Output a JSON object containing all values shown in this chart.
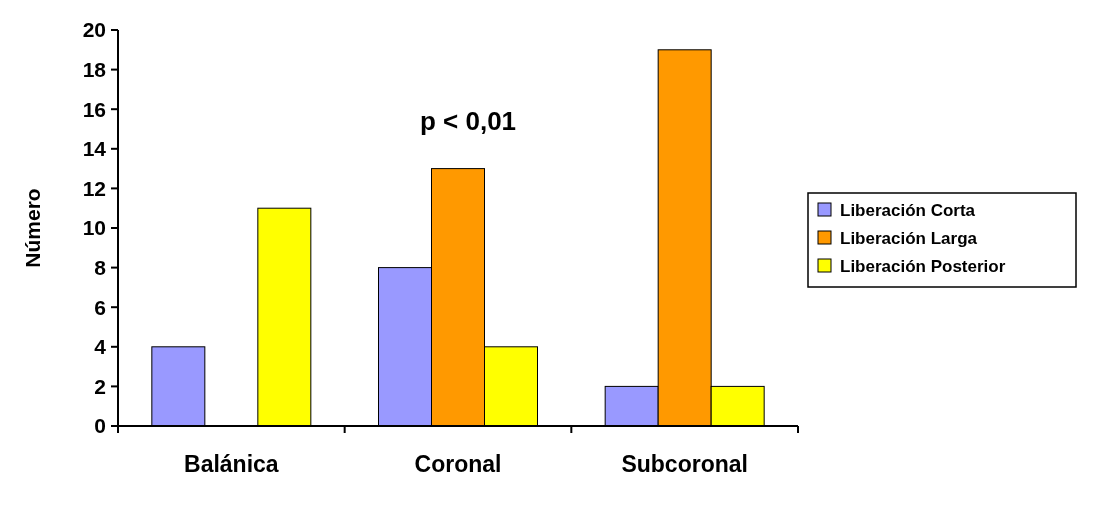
{
  "chart_data": {
    "type": "bar",
    "ylabel": "Número",
    "categories": [
      "Balánica",
      "Coronal",
      "Subcoronal"
    ],
    "series": [
      {
        "name": "Liberación Corta",
        "color": "#9999ff",
        "values": [
          4,
          8,
          2
        ]
      },
      {
        "name": "Liberación Larga",
        "color": "#ff9900",
        "values": [
          0,
          13,
          19
        ]
      },
      {
        "name": "Liberación Posterior",
        "color": "#ffff00",
        "values": [
          11,
          4,
          2
        ]
      }
    ],
    "ylim": [
      0,
      20
    ],
    "yticks": [
      0,
      2,
      4,
      6,
      8,
      10,
      12,
      14,
      16,
      18,
      20
    ],
    "legend": "right",
    "grid": false,
    "annotations": [
      "p < 0,01"
    ]
  }
}
